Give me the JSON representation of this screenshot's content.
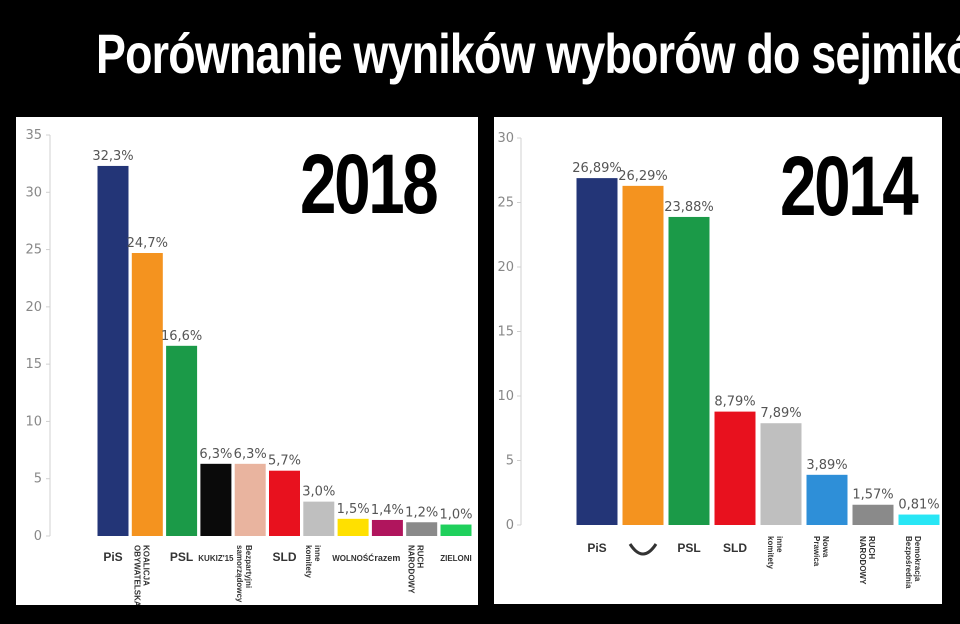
{
  "title": "Porównanie wyników wyborów do sejmików",
  "colors": {
    "background": "#000000",
    "panel": "#ffffff",
    "axis_text": "#888888"
  },
  "chart_data": [
    {
      "type": "bar",
      "title": "2018",
      "ylim": [
        0,
        35
      ],
      "yticks": [
        "0",
        "5",
        "10",
        "15",
        "20",
        "25",
        "30",
        "35"
      ],
      "grid": false,
      "categories": [
        "PiS",
        "Koalicja Obywatelska",
        "PSL",
        "Kukiz'15",
        "Bezpartyjni Samorządowcy",
        "SLD",
        "inne komitety",
        "Wolność",
        "razem",
        "Ruch Narodowy",
        "Zieloni"
      ],
      "axis_labels": [
        "PiS",
        "KOALICJA OBYWATELSKA",
        "PSL",
        "KUKIZ'15",
        "Bezpartyjni samorządowcy",
        "SLD",
        "inne komitety",
        "WOLNOŚĆ",
        "razem",
        "RUCH NARODOWY",
        "ZIELONI"
      ],
      "values": [
        32.3,
        24.7,
        16.6,
        6.3,
        6.3,
        5.7,
        3.0,
        1.5,
        1.4,
        1.2,
        1.0
      ],
      "value_labels": [
        "32,3%",
        "24,7%",
        "16,6%",
        "6,3%",
        "6,3%",
        "5,7%",
        "3,0%",
        "1,5%",
        "1,4%",
        "1,2%",
        "1,0%"
      ],
      "colors": [
        "#233577",
        "#f4931f",
        "#1b9a48",
        "#0a0a0a",
        "#e9b49f",
        "#e8111e",
        "#bfbfbf",
        "#ffe000",
        "#b0155d",
        "#8a8a8a",
        "#1fd05c"
      ]
    },
    {
      "type": "bar",
      "title": "2014",
      "ylim": [
        0,
        30
      ],
      "yticks": [
        "0",
        "5",
        "10",
        "15",
        "20",
        "25",
        "30"
      ],
      "grid": false,
      "categories": [
        "PiS",
        "Platforma Obywatelska",
        "PSL",
        "SLD",
        "inne komitety",
        "Nowa Prawica",
        "Ruch Narodowy",
        "Demokracja Bezpośrednia"
      ],
      "axis_labels": [
        "PiS",
        "",
        "PSL",
        "SLD",
        "inne komitety",
        "Nowa Prawica",
        "RUCH NARODOWY",
        "Demokracja Bezpośrednia"
      ],
      "values": [
        26.89,
        26.29,
        23.88,
        8.79,
        7.89,
        3.89,
        1.57,
        0.81
      ],
      "value_labels": [
        "26,89%",
        "26,29%",
        "23,88%",
        "8,79%",
        "7,89%",
        "3,89%",
        "1,57%",
        "0,81%"
      ],
      "colors": [
        "#233577",
        "#f4931f",
        "#1b9a48",
        "#e8111e",
        "#bfbfbf",
        "#2e8fd8",
        "#8a8a8a",
        "#28e6f5"
      ]
    }
  ]
}
